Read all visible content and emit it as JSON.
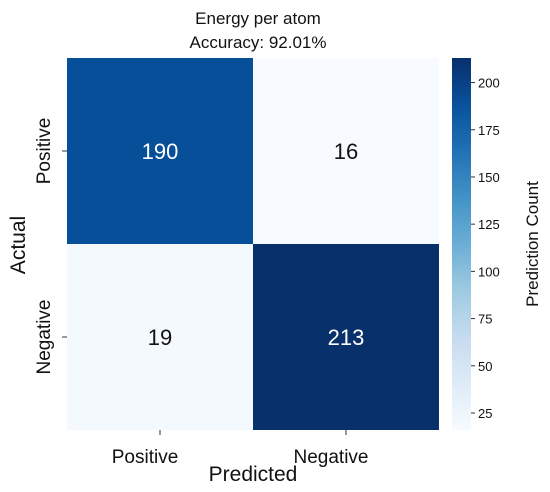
{
  "chart_data": {
    "type": "heatmap",
    "title": "Energy per atom",
    "subtitle": "Accuracy: 92.01%",
    "xlabel": "Predicted",
    "ylabel": "Actual",
    "x_categories": [
      "Positive",
      "Negative"
    ],
    "y_categories": [
      "Positive",
      "Negative"
    ],
    "values": [
      [
        190,
        16
      ],
      [
        19,
        213
      ]
    ],
    "colorbar": {
      "label": "Prediction Count",
      "range": [
        16,
        213
      ],
      "ticks": [
        25,
        50,
        75,
        100,
        125,
        150,
        175,
        200
      ]
    },
    "colormap": [
      "#f7fbff",
      "#deebf7",
      "#c6dbef",
      "#9ecae1",
      "#6baed6",
      "#4292c6",
      "#2171b5",
      "#08519c",
      "#08306b"
    ],
    "grid": false
  }
}
